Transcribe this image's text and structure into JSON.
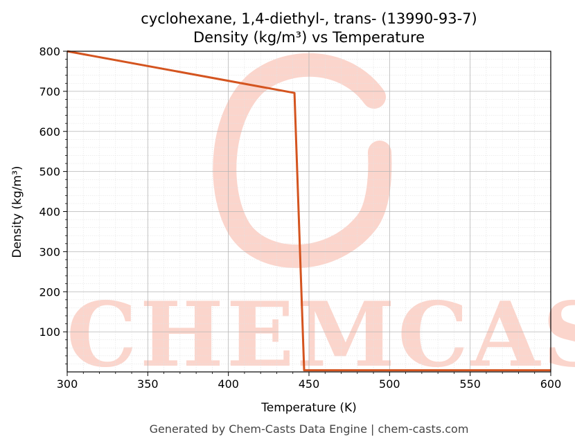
{
  "chart_data": {
    "type": "line",
    "title": "cyclohexane, 1,4-diethyl-, trans- (13990-93-7)",
    "subtitle": "Density (kg/m³) vs Temperature",
    "xlabel": "Temperature (K)",
    "ylabel": "Density (kg/m³)",
    "xlim": [
      300,
      600
    ],
    "ylim": [
      0,
      800
    ],
    "xticks": [
      300,
      350,
      400,
      450,
      500,
      550,
      600
    ],
    "yticks": [
      100,
      200,
      300,
      400,
      500,
      600,
      700,
      800
    ],
    "grid": true,
    "series": [
      {
        "color": "#d4541f",
        "x": [
          300,
          441,
          447,
          448,
          600
        ],
        "y": [
          800,
          696,
          4,
          4,
          4
        ]
      }
    ]
  },
  "watermark": {
    "text": "CHEMCASTS",
    "color": "#fbd5cc"
  },
  "footer": "Generated by Chem-Casts Data Engine | chem-casts.com"
}
